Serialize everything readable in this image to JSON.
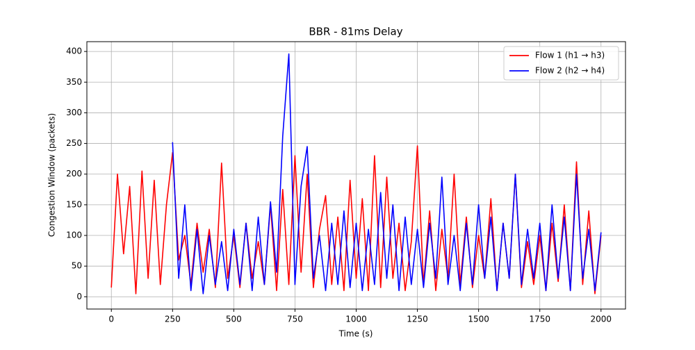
{
  "chart_data": {
    "type": "line",
    "title": "BBR - 81ms Delay",
    "xlabel": "Time (s)",
    "ylabel": "Congestion Window (packets)",
    "xlim": [
      -100,
      2100
    ],
    "ylim": [
      -20,
      416
    ],
    "xticks": [
      0,
      250,
      500,
      750,
      1000,
      1250,
      1500,
      1750,
      2000
    ],
    "yticks": [
      0,
      50,
      100,
      150,
      200,
      250,
      300,
      350,
      400
    ],
    "grid": true,
    "legend": "upper right",
    "series": [
      {
        "name": "Flow 1 (h1 → h3)",
        "color": "#ff0000",
        "x": [
          0,
          25,
          50,
          75,
          100,
          125,
          150,
          175,
          200,
          225,
          250,
          275,
          300,
          325,
          350,
          375,
          400,
          425,
          450,
          475,
          500,
          525,
          550,
          575,
          600,
          625,
          650,
          675,
          700,
          725,
          750,
          775,
          800,
          825,
          850,
          875,
          900,
          925,
          950,
          975,
          1000,
          1025,
          1050,
          1075,
          1100,
          1125,
          1150,
          1175,
          1200,
          1225,
          1250,
          1275,
          1300,
          1325,
          1350,
          1375,
          1400,
          1425,
          1450,
          1475,
          1500,
          1525,
          1550,
          1575,
          1600,
          1625,
          1650,
          1675,
          1700,
          1725,
          1750,
          1775,
          1800,
          1825,
          1850,
          1875,
          1900,
          1925,
          1950,
          1975,
          2000
        ],
        "values": [
          15,
          200,
          70,
          180,
          5,
          205,
          30,
          190,
          20,
          150,
          235,
          60,
          100,
          20,
          120,
          40,
          110,
          15,
          218,
          30,
          100,
          15,
          120,
          30,
          90,
          20,
          150,
          10,
          175,
          20,
          230,
          40,
          200,
          15,
          110,
          165,
          20,
          130,
          10,
          190,
          30,
          160,
          10,
          230,
          15,
          195,
          30,
          120,
          10,
          90,
          246,
          20,
          140,
          10,
          110,
          30,
          200,
          20,
          130,
          15,
          100,
          30,
          160,
          10,
          120,
          30,
          200,
          15,
          90,
          20,
          100,
          10,
          120,
          25,
          150,
          10,
          220,
          20,
          140,
          5,
          100
        ]
      },
      {
        "name": "Flow 2 (h2 → h4)",
        "color": "#0000ff",
        "x": [
          250,
          275,
          300,
          325,
          350,
          375,
          400,
          425,
          450,
          475,
          500,
          525,
          550,
          575,
          600,
          625,
          650,
          675,
          700,
          725,
          750,
          775,
          800,
          825,
          850,
          875,
          900,
          925,
          950,
          975,
          1000,
          1025,
          1050,
          1075,
          1100,
          1125,
          1150,
          1175,
          1200,
          1225,
          1250,
          1275,
          1300,
          1325,
          1350,
          1375,
          1400,
          1425,
          1450,
          1475,
          1500,
          1525,
          1550,
          1575,
          1600,
          1625,
          1650,
          1675,
          1700,
          1725,
          1750,
          1775,
          1800,
          1825,
          1850,
          1875,
          1900,
          1925,
          1950,
          1975,
          2000
        ],
        "values": [
          252,
          30,
          150,
          10,
          110,
          5,
          100,
          20,
          90,
          10,
          110,
          20,
          120,
          10,
          130,
          20,
          155,
          40,
          262,
          396,
          20,
          180,
          245,
          30,
          100,
          10,
          120,
          20,
          140,
          15,
          120,
          10,
          110,
          20,
          170,
          30,
          150,
          10,
          130,
          20,
          110,
          15,
          120,
          30,
          195,
          20,
          100,
          10,
          120,
          20,
          150,
          30,
          130,
          10,
          120,
          30,
          200,
          20,
          110,
          30,
          120,
          10,
          150,
          30,
          130,
          10,
          200,
          30,
          110,
          10,
          105
        ]
      }
    ]
  }
}
